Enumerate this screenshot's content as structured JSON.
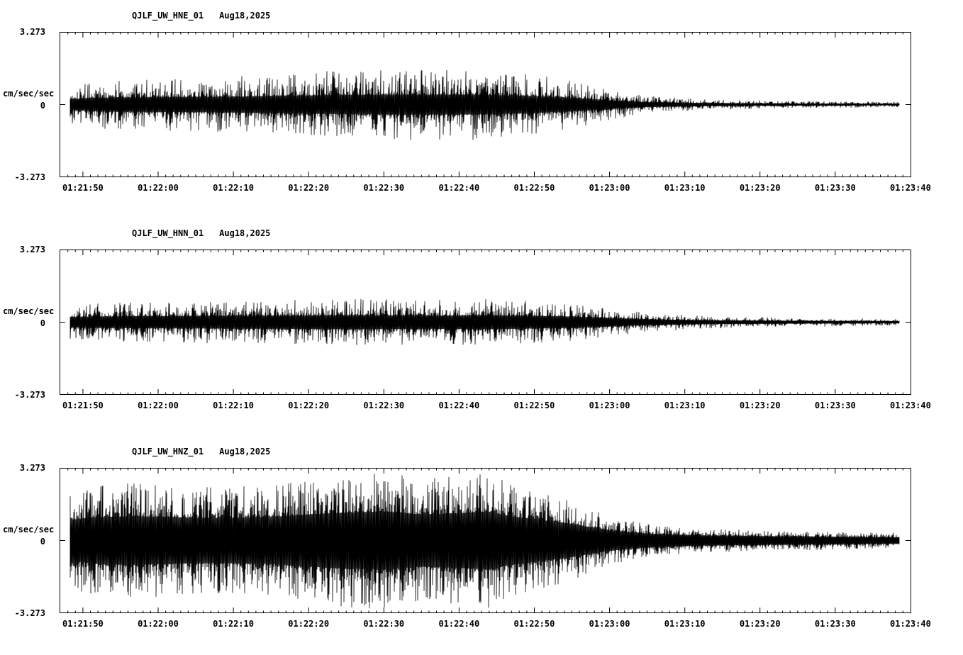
{
  "figure": {
    "background": "#ffffff",
    "foreground": "#000000"
  },
  "chart_data": {
    "type": "line",
    "subtype": "seismogram",
    "ylabel": "cm/sec/sec",
    "ylim": [
      -3.273,
      3.273
    ],
    "y_tick_labels": {
      "top": "3.273",
      "mid": "0",
      "bottom": "-3.273"
    },
    "x_ticks": [
      "01:21:50",
      "01:22:00",
      "01:22:10",
      "01:22:20",
      "01:22:30",
      "01:22:40",
      "01:22:50",
      "01:23:00",
      "01:23:10",
      "01:23:20",
      "01:23:30",
      "01:23:40"
    ],
    "x_tick_interval_s": 10,
    "x_tick_start_s": 3.1,
    "x_span_s": 113.2,
    "trace_start_s": 1.4,
    "trace_end_s": 111.6,
    "panels": [
      {
        "station": "QJLF_UW_HNE_01",
        "date": "Aug18,2025",
        "seed": 101,
        "noise": {
          "base": 0.28,
          "exp": 3
        },
        "envelope": [
          [
            1.4,
            0.9
          ],
          [
            5,
            1.1
          ],
          [
            15,
            1.2
          ],
          [
            25,
            1.3
          ],
          [
            35,
            1.5
          ],
          [
            45,
            1.6
          ],
          [
            55,
            1.6
          ],
          [
            62,
            1.4
          ],
          [
            68,
            1.1
          ],
          [
            73,
            0.7
          ],
          [
            78,
            0.4
          ],
          [
            85,
            0.25
          ],
          [
            95,
            0.18
          ],
          [
            105,
            0.14
          ],
          [
            111.6,
            0.12
          ]
        ]
      },
      {
        "station": "QJLF_UW_HNN_01",
        "date": "Aug18,2025",
        "seed": 202,
        "noise": {
          "base": 0.3,
          "exp": 3
        },
        "envelope": [
          [
            1.4,
            0.8
          ],
          [
            10,
            0.9
          ],
          [
            20,
            0.95
          ],
          [
            30,
            1.0
          ],
          [
            40,
            1.05
          ],
          [
            50,
            1.0
          ],
          [
            57,
            1.05
          ],
          [
            63,
            0.95
          ],
          [
            68,
            0.85
          ],
          [
            73,
            0.65
          ],
          [
            78,
            0.45
          ],
          [
            85,
            0.3
          ],
          [
            95,
            0.22
          ],
          [
            105,
            0.18
          ],
          [
            111.6,
            0.15
          ]
        ]
      },
      {
        "station": "QJLF_UW_HNZ_01",
        "date": "Aug18,2025",
        "seed": 303,
        "noise": {
          "base": 0.42,
          "exp": 2.5
        },
        "envelope": [
          [
            1.4,
            2.2
          ],
          [
            5,
            2.5
          ],
          [
            10,
            2.6
          ],
          [
            20,
            2.4
          ],
          [
            28,
            2.5
          ],
          [
            33,
            2.8
          ],
          [
            38,
            3.0
          ],
          [
            43,
            3.1
          ],
          [
            48,
            2.8
          ],
          [
            53,
            2.9
          ],
          [
            57,
            3.1
          ],
          [
            60,
            2.6
          ],
          [
            64,
            2.2
          ],
          [
            68,
            1.8
          ],
          [
            73,
            1.1
          ],
          [
            78,
            0.75
          ],
          [
            85,
            0.55
          ],
          [
            95,
            0.45
          ],
          [
            105,
            0.4
          ],
          [
            111.6,
            0.35
          ]
        ]
      }
    ]
  }
}
